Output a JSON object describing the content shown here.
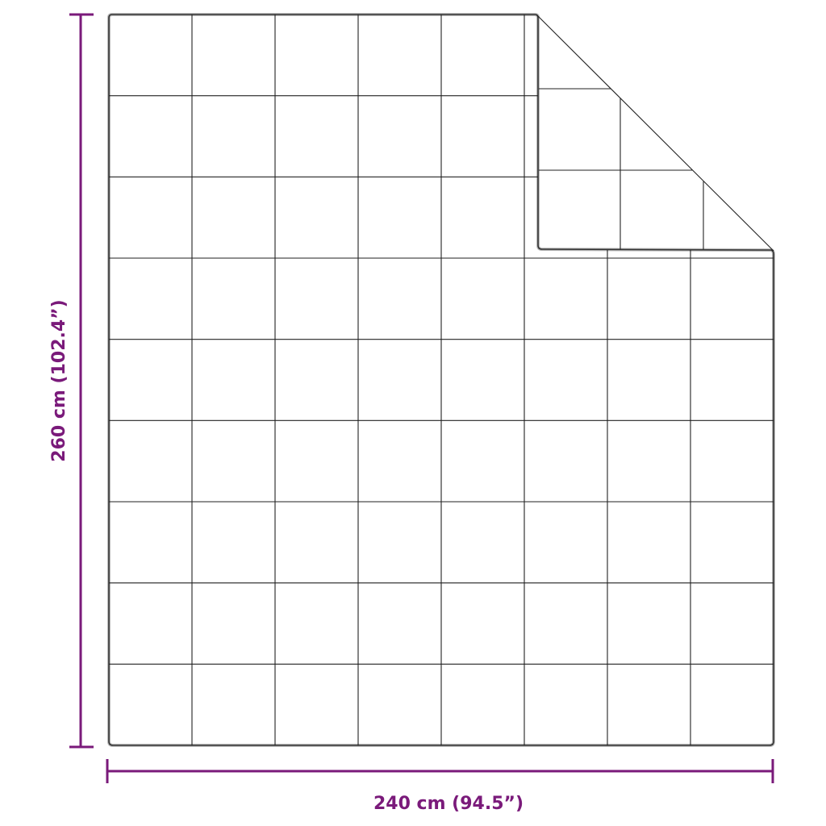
{
  "dimensions": {
    "height_label": "260 cm (102.4”)",
    "width_label": "240 cm (94.5”)"
  },
  "colors": {
    "dimension": "#7a1a7a",
    "outline": "#333333",
    "quilt_lines": "#222222"
  },
  "quilt": {
    "columns": 8,
    "rows": 9,
    "folded_corner": "top-right"
  }
}
